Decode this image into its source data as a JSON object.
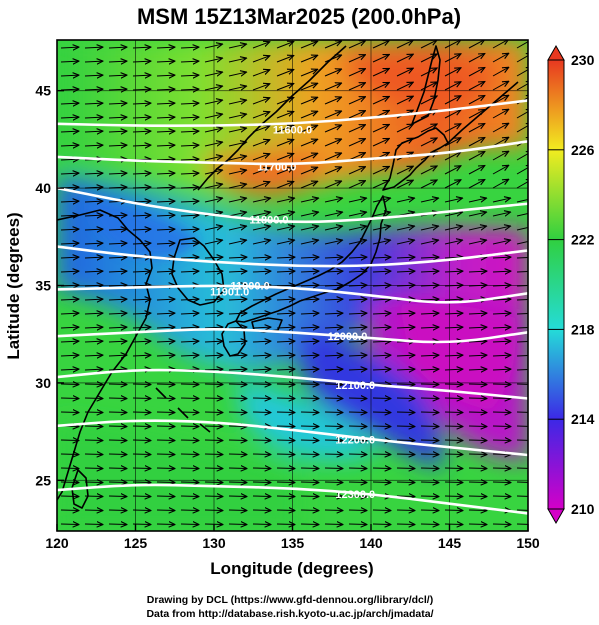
{
  "title": "MSM 15Z13Mar2025 (200.0hPa)",
  "xlabel": "Longitude (degrees)",
  "ylabel": "Latitude  (degrees)",
  "credits": [
    "Drawing by DCL (https://www.gfd-dennou.org/library/dcl/)",
    "Data from http://database.rish.kyoto-u.ac.jp/arch/jmadata/"
  ],
  "map": {
    "lon_range": [
      120,
      150
    ],
    "lat_range": [
      22.4,
      47.6
    ],
    "x_ticks": [
      "120",
      "125",
      "130",
      "135",
      "140",
      "145",
      "150"
    ],
    "y_ticks": [
      "25",
      "30",
      "35",
      "40",
      "45"
    ],
    "field": "temperature",
    "colorbar": {
      "min": 210,
      "max": 230,
      "ticks": [
        "210",
        "214",
        "218",
        "222",
        "226",
        "230"
      ],
      "colors": [
        "#d400c8",
        "#3c28e6",
        "#24dcd8",
        "#30d040",
        "#f2ec20",
        "#e83820"
      ]
    },
    "contours": [
      {
        "label": "11600.0",
        "label_lon": 135.0,
        "label_lat": 43.0,
        "lats": [
          43.3,
          43.2,
          43.2,
          43.3,
          43.6,
          44.0,
          44.5
        ]
      },
      {
        "label": "11700.0",
        "label_lon": 134.0,
        "label_lat": 41.1,
        "lats": [
          41.6,
          41.4,
          41.3,
          41.2,
          41.5,
          41.8,
          42.4
        ]
      },
      {
        "label": "11800.0",
        "label_lon": 133.5,
        "label_lat": 38.4,
        "lats": [
          40.0,
          39.2,
          38.6,
          38.2,
          38.4,
          38.8,
          39.2
        ]
      },
      {
        "label": "11900.0",
        "label_lon": 132.3,
        "label_lat": 35.0,
        "lats": [
          37.0,
          36.5,
          36.2,
          36.0,
          36.0,
          36.3,
          36.8
        ]
      },
      {
        "label": "11901.0",
        "label_lon": 131.0,
        "label_lat": 34.7,
        "lats": [
          34.8,
          34.9,
          35.0,
          34.9,
          34.5,
          34.0,
          34.6
        ]
      },
      {
        "label": "12000.0",
        "label_lon": 138.5,
        "label_lat": 32.4,
        "lats": [
          32.4,
          32.6,
          32.8,
          32.6,
          32.3,
          32.0,
          32.6
        ]
      },
      {
        "label": "12100.0",
        "label_lon": 139.0,
        "label_lat": 29.9,
        "lats": [
          30.3,
          30.7,
          30.6,
          30.3,
          29.9,
          29.6,
          29.2
        ]
      },
      {
        "label": "12200.0",
        "label_lon": 139.0,
        "label_lat": 27.1,
        "lats": [
          27.8,
          28.1,
          28.0,
          27.6,
          27.1,
          26.7,
          26.3
        ]
      },
      {
        "label": "12300.0",
        "label_lon": 139.0,
        "label_lat": 24.3,
        "lats": [
          24.5,
          24.8,
          24.7,
          24.6,
          24.3,
          23.8,
          23.3
        ]
      }
    ]
  }
}
